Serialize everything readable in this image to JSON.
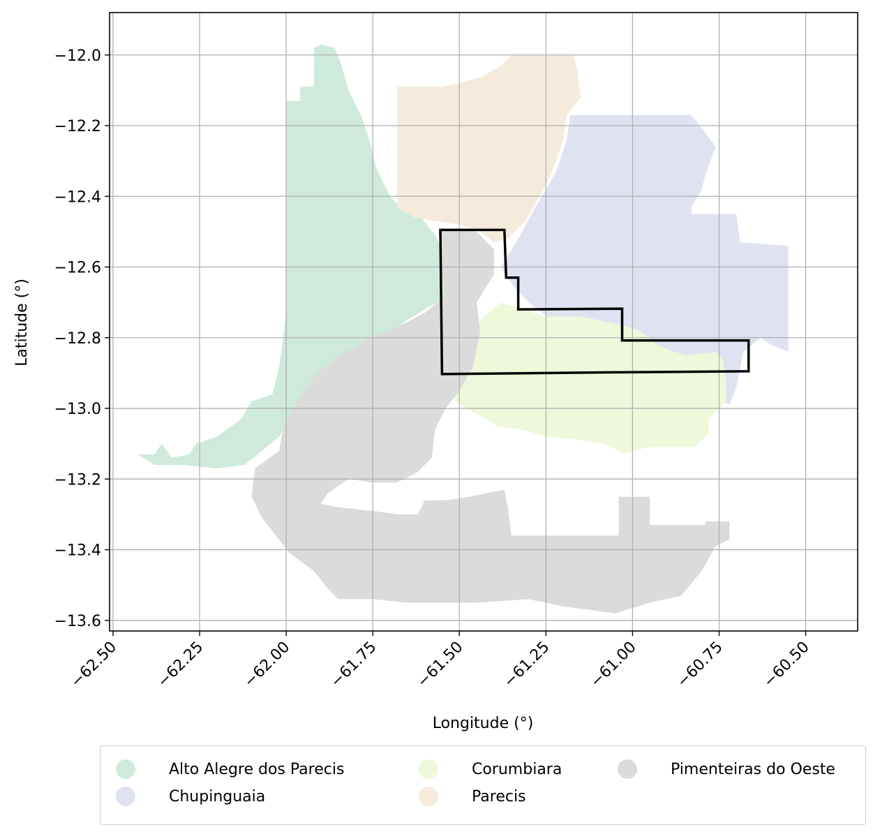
{
  "chart_data": {
    "type": "map",
    "xlabel": "Longitude (°)",
    "ylabel": "Latitude (°)",
    "xlim": [
      -62.51,
      -60.35
    ],
    "ylim": [
      -13.63,
      -11.88
    ],
    "x_ticks": [
      -62.5,
      -62.25,
      -62.0,
      -61.75,
      -61.5,
      -61.25,
      -61.0,
      -60.75,
      -60.5
    ],
    "x_tick_labels": [
      "−62.50",
      "−62.25",
      "−62.00",
      "−61.75",
      "−61.50",
      "−61.25",
      "−61.00",
      "−60.75",
      "−60.50"
    ],
    "y_ticks": [
      -12.0,
      -12.2,
      -12.4,
      -12.6,
      -12.8,
      -13.0,
      -13.2,
      -13.4,
      -13.6
    ],
    "y_tick_labels": [
      "−12.0",
      "−12.2",
      "−12.4",
      "−12.6",
      "−12.8",
      "−13.0",
      "−13.2",
      "−13.4",
      "−13.6"
    ],
    "grid": true,
    "legend_position": "below",
    "regions": [
      {
        "name": "Alto Alegre dos Parecis",
        "color": "#cfeadb",
        "polygon": [
          [
            -62.43,
            -13.13
          ],
          [
            -62.38,
            -13.13
          ],
          [
            -62.36,
            -13.1
          ],
          [
            -62.33,
            -13.14
          ],
          [
            -62.28,
            -13.13
          ],
          [
            -62.26,
            -13.1
          ],
          [
            -62.2,
            -13.08
          ],
          [
            -62.13,
            -13.03
          ],
          [
            -62.1,
            -12.98
          ],
          [
            -62.04,
            -12.96
          ],
          [
            -62.02,
            -12.88
          ],
          [
            -62.01,
            -12.81
          ],
          [
            -62.0,
            -12.72
          ],
          [
            -62.0,
            -12.4
          ],
          [
            -62.0,
            -12.27
          ],
          [
            -62.0,
            -12.13
          ],
          [
            -61.96,
            -12.13
          ],
          [
            -61.96,
            -12.09
          ],
          [
            -61.92,
            -12.09
          ],
          [
            -61.92,
            -11.98
          ],
          [
            -61.9,
            -11.97
          ],
          [
            -61.86,
            -11.98
          ],
          [
            -61.84,
            -12.03
          ],
          [
            -61.82,
            -12.1
          ],
          [
            -61.78,
            -12.18
          ],
          [
            -61.76,
            -12.24
          ],
          [
            -61.74,
            -12.32
          ],
          [
            -61.7,
            -12.4
          ],
          [
            -61.67,
            -12.43
          ],
          [
            -61.61,
            -12.46
          ],
          [
            -61.57,
            -12.51
          ],
          [
            -61.55,
            -12.55
          ],
          [
            -61.53,
            -12.62
          ],
          [
            -61.53,
            -12.68
          ],
          [
            -61.6,
            -12.72
          ],
          [
            -61.65,
            -12.75
          ],
          [
            -61.72,
            -12.8
          ],
          [
            -61.78,
            -12.85
          ],
          [
            -61.86,
            -12.9
          ],
          [
            -61.93,
            -12.95
          ],
          [
            -61.99,
            -13.02
          ],
          [
            -62.02,
            -13.08
          ],
          [
            -62.07,
            -13.12
          ],
          [
            -62.12,
            -13.16
          ],
          [
            -62.2,
            -13.17
          ],
          [
            -62.3,
            -13.16
          ],
          [
            -62.38,
            -13.16
          ]
        ]
      },
      {
        "name": "Parecis",
        "color": "#f5ebdd",
        "polygon": [
          [
            -61.68,
            -12.09
          ],
          [
            -61.55,
            -12.09
          ],
          [
            -61.5,
            -12.08
          ],
          [
            -61.43,
            -12.06
          ],
          [
            -61.38,
            -12.03
          ],
          [
            -61.35,
            -12.0
          ],
          [
            -61.17,
            -12.0
          ],
          [
            -61.16,
            -12.04
          ],
          [
            -61.15,
            -12.12
          ],
          [
            -61.19,
            -12.17
          ],
          [
            -61.2,
            -12.24
          ],
          [
            -61.22,
            -12.3
          ],
          [
            -61.25,
            -12.37
          ],
          [
            -61.28,
            -12.42
          ],
          [
            -61.31,
            -12.47
          ],
          [
            -61.36,
            -12.52
          ],
          [
            -61.4,
            -12.53
          ],
          [
            -61.44,
            -12.5
          ],
          [
            -61.5,
            -12.48
          ],
          [
            -61.57,
            -12.47
          ],
          [
            -61.63,
            -12.46
          ],
          [
            -61.68,
            -12.43
          ]
        ]
      },
      {
        "name": "Chupinguaia",
        "color": "#dfe3f1",
        "polygon": [
          [
            -61.18,
            -12.17
          ],
          [
            -60.83,
            -12.17
          ],
          [
            -60.79,
            -12.22
          ],
          [
            -60.76,
            -12.26
          ],
          [
            -60.79,
            -12.34
          ],
          [
            -60.8,
            -12.38
          ],
          [
            -60.83,
            -12.43
          ],
          [
            -60.83,
            -12.45
          ],
          [
            -60.7,
            -12.45
          ],
          [
            -60.69,
            -12.53
          ],
          [
            -60.55,
            -12.54
          ],
          [
            -60.55,
            -12.84
          ],
          [
            -60.6,
            -12.82
          ],
          [
            -60.63,
            -12.8
          ],
          [
            -60.68,
            -12.84
          ],
          [
            -60.7,
            -12.94
          ],
          [
            -60.72,
            -12.99
          ],
          [
            -60.78,
            -12.96
          ],
          [
            -60.85,
            -12.95
          ],
          [
            -60.93,
            -12.94
          ],
          [
            -61.0,
            -12.92
          ],
          [
            -61.05,
            -12.88
          ],
          [
            -61.08,
            -12.83
          ],
          [
            -61.1,
            -12.8
          ],
          [
            -61.15,
            -12.78
          ],
          [
            -61.22,
            -12.76
          ],
          [
            -61.26,
            -12.73
          ],
          [
            -61.3,
            -12.7
          ],
          [
            -61.34,
            -12.66
          ],
          [
            -61.38,
            -12.6
          ],
          [
            -61.33,
            -12.52
          ],
          [
            -61.28,
            -12.43
          ],
          [
            -61.22,
            -12.33
          ],
          [
            -61.19,
            -12.24
          ]
        ]
      },
      {
        "name": "Corumbiara",
        "color": "#eef8da",
        "polygon": [
          [
            -61.46,
            -12.8
          ],
          [
            -61.44,
            -12.75
          ],
          [
            -61.38,
            -12.7
          ],
          [
            -61.32,
            -12.72
          ],
          [
            -61.25,
            -12.74
          ],
          [
            -61.15,
            -12.74
          ],
          [
            -61.05,
            -12.76
          ],
          [
            -60.98,
            -12.78
          ],
          [
            -60.93,
            -12.82
          ],
          [
            -60.88,
            -12.84
          ],
          [
            -60.84,
            -12.85
          ],
          [
            -60.76,
            -12.84
          ],
          [
            -60.74,
            -12.86
          ],
          [
            -60.73,
            -12.92
          ],
          [
            -60.73,
            -12.98
          ],
          [
            -60.78,
            -13.03
          ],
          [
            -60.78,
            -13.07
          ],
          [
            -60.82,
            -13.11
          ],
          [
            -60.9,
            -13.11
          ],
          [
            -60.96,
            -13.11
          ],
          [
            -61.02,
            -13.13
          ],
          [
            -61.08,
            -13.1
          ],
          [
            -61.15,
            -13.09
          ],
          [
            -61.25,
            -13.08
          ],
          [
            -61.32,
            -13.06
          ],
          [
            -61.39,
            -13.05
          ],
          [
            -61.44,
            -13.02
          ],
          [
            -61.5,
            -12.99
          ],
          [
            -61.54,
            -12.95
          ],
          [
            -61.52,
            -12.88
          ],
          [
            -61.48,
            -12.83
          ]
        ]
      },
      {
        "name": "Pimenteiras do Oeste",
        "color": "#dbdbdb",
        "polygon": [
          [
            -61.56,
            -12.5
          ],
          [
            -61.55,
            -12.62
          ],
          [
            -61.54,
            -12.68
          ],
          [
            -61.6,
            -12.73
          ],
          [
            -61.68,
            -12.77
          ],
          [
            -61.76,
            -12.8
          ],
          [
            -61.86,
            -12.86
          ],
          [
            -61.92,
            -12.91
          ],
          [
            -61.97,
            -12.98
          ],
          [
            -62.01,
            -13.06
          ],
          [
            -62.02,
            -13.12
          ],
          [
            -62.09,
            -13.17
          ],
          [
            -62.1,
            -13.25
          ],
          [
            -62.07,
            -13.31
          ],
          [
            -62.03,
            -13.36
          ],
          [
            -61.99,
            -13.41
          ],
          [
            -61.92,
            -13.46
          ],
          [
            -61.88,
            -13.51
          ],
          [
            -61.85,
            -13.54
          ],
          [
            -61.75,
            -13.54
          ],
          [
            -61.65,
            -13.55
          ],
          [
            -61.55,
            -13.55
          ],
          [
            -61.45,
            -13.55
          ],
          [
            -61.3,
            -13.54
          ],
          [
            -61.2,
            -13.56
          ],
          [
            -61.05,
            -13.58
          ],
          [
            -60.95,
            -13.55
          ],
          [
            -60.86,
            -13.53
          ],
          [
            -60.8,
            -13.46
          ],
          [
            -60.76,
            -13.39
          ],
          [
            -60.72,
            -13.37
          ],
          [
            -60.72,
            -13.32
          ],
          [
            -60.79,
            -13.32
          ],
          [
            -60.79,
            -13.33
          ],
          [
            -60.95,
            -13.33
          ],
          [
            -60.95,
            -13.25
          ],
          [
            -61.04,
            -13.25
          ],
          [
            -61.04,
            -13.36
          ],
          [
            -61.35,
            -13.36
          ],
          [
            -61.36,
            -13.28
          ],
          [
            -61.37,
            -13.23
          ],
          [
            -61.42,
            -13.24
          ],
          [
            -61.47,
            -13.25
          ],
          [
            -61.54,
            -13.26
          ],
          [
            -61.6,
            -13.26
          ],
          [
            -61.62,
            -13.3
          ],
          [
            -61.68,
            -13.3
          ],
          [
            -61.75,
            -13.29
          ],
          [
            -61.85,
            -13.28
          ],
          [
            -61.9,
            -13.27
          ],
          [
            -61.88,
            -13.24
          ],
          [
            -61.82,
            -13.2
          ],
          [
            -61.75,
            -13.21
          ],
          [
            -61.68,
            -13.21
          ],
          [
            -61.62,
            -13.18
          ],
          [
            -61.58,
            -13.14
          ],
          [
            -61.57,
            -13.06
          ],
          [
            -61.54,
            -13.0
          ],
          [
            -61.5,
            -12.95
          ],
          [
            -61.46,
            -12.88
          ],
          [
            -61.44,
            -12.78
          ],
          [
            -61.45,
            -12.7
          ],
          [
            -61.4,
            -12.62
          ],
          [
            -61.4,
            -12.55
          ],
          [
            -61.45,
            -12.5
          ],
          [
            -61.5,
            -12.49
          ]
        ]
      }
    ],
    "outline": [
      [
        -61.555,
        -12.495
      ],
      [
        -61.37,
        -12.495
      ],
      [
        -61.365,
        -12.63
      ],
      [
        -61.33,
        -12.63
      ],
      [
        -61.33,
        -12.72
      ],
      [
        -61.03,
        -12.718
      ],
      [
        -61.03,
        -12.808
      ],
      [
        -60.665,
        -12.808
      ],
      [
        -60.665,
        -12.895
      ],
      [
        -61.05,
        -12.898
      ],
      [
        -61.55,
        -12.903
      ]
    ],
    "legend": [
      {
        "label": "Alto Alegre dos Parecis",
        "color": "#cfeadb"
      },
      {
        "label": "Chupinguaia",
        "color": "#dfe3f1"
      },
      {
        "label": "Corumbiara",
        "color": "#eef8da"
      },
      {
        "label": "Parecis",
        "color": "#f5ebdd"
      },
      {
        "label": "Pimenteiras do Oeste",
        "color": "#dbdbdb"
      }
    ]
  }
}
